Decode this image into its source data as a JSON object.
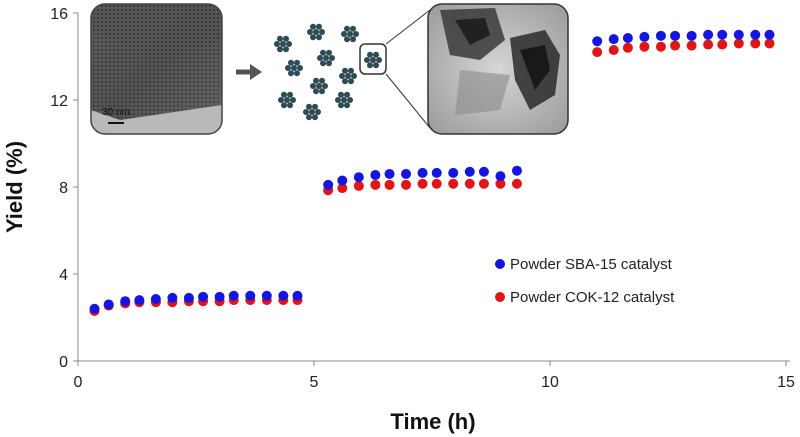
{
  "chart_data": {
    "type": "scatter",
    "xlabel": "Time (h)",
    "ylabel": "Yield (%)",
    "xlim": [
      0,
      15
    ],
    "ylim": [
      0,
      16
    ],
    "x_ticks": [
      0,
      5,
      10,
      15
    ],
    "y_ticks": [
      0,
      4,
      8,
      12,
      16
    ],
    "grid": false,
    "legend_position": "right-middle",
    "series": [
      {
        "name": "Powder SBA-15 catalyst",
        "color": "#1515e0",
        "points": [
          [
            0.35,
            2.4
          ],
          [
            0.65,
            2.6
          ],
          [
            1.0,
            2.75
          ],
          [
            1.3,
            2.8
          ],
          [
            1.65,
            2.85
          ],
          [
            2.0,
            2.9
          ],
          [
            2.35,
            2.9
          ],
          [
            2.65,
            2.95
          ],
          [
            3.0,
            2.95
          ],
          [
            3.3,
            3.0
          ],
          [
            3.65,
            3.0
          ],
          [
            4.0,
            3.0
          ],
          [
            4.35,
            3.0
          ],
          [
            4.65,
            3.0
          ],
          [
            5.3,
            8.1
          ],
          [
            5.6,
            8.3
          ],
          [
            5.95,
            8.45
          ],
          [
            6.3,
            8.55
          ],
          [
            6.6,
            8.6
          ],
          [
            6.95,
            8.6
          ],
          [
            7.3,
            8.65
          ],
          [
            7.6,
            8.65
          ],
          [
            7.95,
            8.65
          ],
          [
            8.3,
            8.7
          ],
          [
            8.6,
            8.7
          ],
          [
            8.95,
            8.5
          ],
          [
            9.3,
            8.75
          ],
          [
            11.0,
            14.7
          ],
          [
            11.35,
            14.8
          ],
          [
            11.65,
            14.85
          ],
          [
            12.0,
            14.9
          ],
          [
            12.35,
            14.95
          ],
          [
            12.65,
            14.95
          ],
          [
            13.0,
            14.95
          ],
          [
            13.35,
            15.0
          ],
          [
            13.65,
            15.0
          ],
          [
            14.0,
            15.0
          ],
          [
            14.35,
            15.0
          ],
          [
            14.65,
            15.0
          ]
        ]
      },
      {
        "name": "Powder COK-12 catalyst",
        "color": "#e01515",
        "points": [
          [
            0.35,
            2.3
          ],
          [
            0.65,
            2.55
          ],
          [
            1.0,
            2.65
          ],
          [
            1.3,
            2.7
          ],
          [
            1.65,
            2.7
          ],
          [
            2.0,
            2.7
          ],
          [
            2.35,
            2.75
          ],
          [
            2.65,
            2.75
          ],
          [
            3.0,
            2.75
          ],
          [
            3.3,
            2.8
          ],
          [
            3.65,
            2.8
          ],
          [
            4.0,
            2.8
          ],
          [
            4.35,
            2.8
          ],
          [
            4.65,
            2.8
          ],
          [
            5.3,
            7.85
          ],
          [
            5.6,
            7.95
          ],
          [
            5.95,
            8.05
          ],
          [
            6.3,
            8.1
          ],
          [
            6.6,
            8.1
          ],
          [
            6.95,
            8.1
          ],
          [
            7.3,
            8.15
          ],
          [
            7.6,
            8.15
          ],
          [
            7.95,
            8.15
          ],
          [
            8.3,
            8.15
          ],
          [
            8.6,
            8.15
          ],
          [
            8.95,
            8.15
          ],
          [
            9.3,
            8.15
          ],
          [
            11.0,
            14.2
          ],
          [
            11.35,
            14.3
          ],
          [
            11.65,
            14.4
          ],
          [
            12.0,
            14.45
          ],
          [
            12.35,
            14.45
          ],
          [
            12.65,
            14.5
          ],
          [
            13.0,
            14.5
          ],
          [
            13.35,
            14.55
          ],
          [
            13.65,
            14.55
          ],
          [
            14.0,
            14.6
          ],
          [
            14.35,
            14.6
          ],
          [
            14.65,
            14.6
          ]
        ]
      }
    ],
    "insets": {
      "scale_bar_label": "30 nm",
      "arrow_color": "#555555",
      "particle_color": "#2e4a55"
    }
  }
}
